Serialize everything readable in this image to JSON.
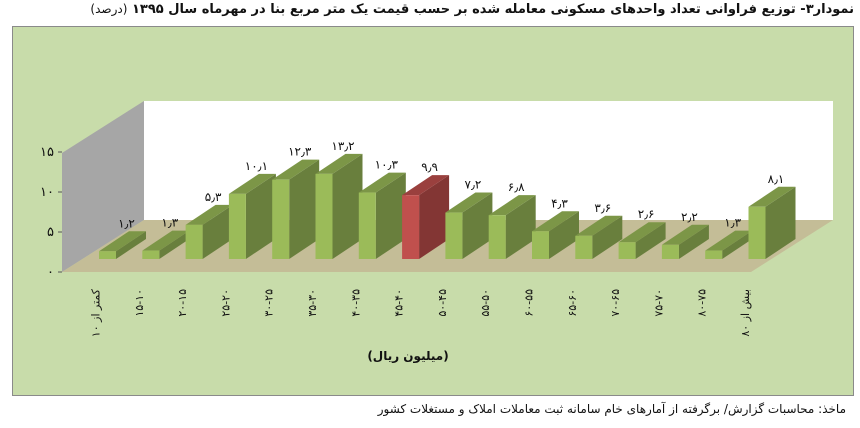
{
  "header": {
    "title": "نمودار۳- توزیع فراوانی تعداد واحدهای مسکونی معامله شده بر حسب قیمت یک متر مربع بنا در مهرماه سال ۱۳۹۵",
    "unit": "(درصد)"
  },
  "footer": {
    "source": "ماخذ: محاسبات گزارش/ برگرفته از آمارهای خام سامانه ثبت معاملات املاک و مستغلات کشور"
  },
  "colors": {
    "bar_normal": "#9bbb59",
    "bar_highlight": "#c0504d",
    "background": "#c8dcaa",
    "floor": "#c4bd97",
    "back_wall": "#ffffff",
    "side_wall": "#a6a6a6"
  },
  "chart_data": {
    "type": "bar",
    "xlabel": "(میلیون ریال)",
    "ylabel": "",
    "ylim": [
      0,
      15
    ],
    "yticks": [
      "۰",
      "۵",
      "۱۰",
      "۱۵"
    ],
    "grid": false,
    "legend": "none",
    "highlight_index": 7,
    "categories": [
      "کمتر از ۱۰",
      "۱۵-۱۰",
      "۲۰-۱۵",
      "۲۵-۲۰",
      "۳۰-۲۵",
      "۳۵-۳۰",
      "۴۰-۳۵",
      "۴۵-۴۰",
      "۵۰-۴۵",
      "۵۵-۵۰",
      "۶۰-۵۵",
      "۶۵-۶۰",
      "۷۰-۶۵",
      "۷۵-۷۰",
      "۸۰-۷۵",
      "بیش از ۸۰"
    ],
    "values": [
      1.2,
      1.3,
      5.3,
      10.1,
      12.3,
      13.2,
      10.3,
      9.9,
      7.2,
      6.8,
      4.3,
      3.6,
      2.6,
      2.2,
      1.3,
      8.1
    ],
    "value_labels": [
      "۱٫۲",
      "۱٫۳",
      "۵٫۳",
      "۱۰٫۱",
      "۱۲٫۳",
      "۱۳٫۲",
      "۱۰٫۳",
      "۹٫۹",
      "۷٫۲",
      "۶٫۸",
      "۴٫۳",
      "۳٫۶",
      "۲٫۶",
      "۲٫۲",
      "۱٫۳",
      "۸٫۱"
    ]
  }
}
